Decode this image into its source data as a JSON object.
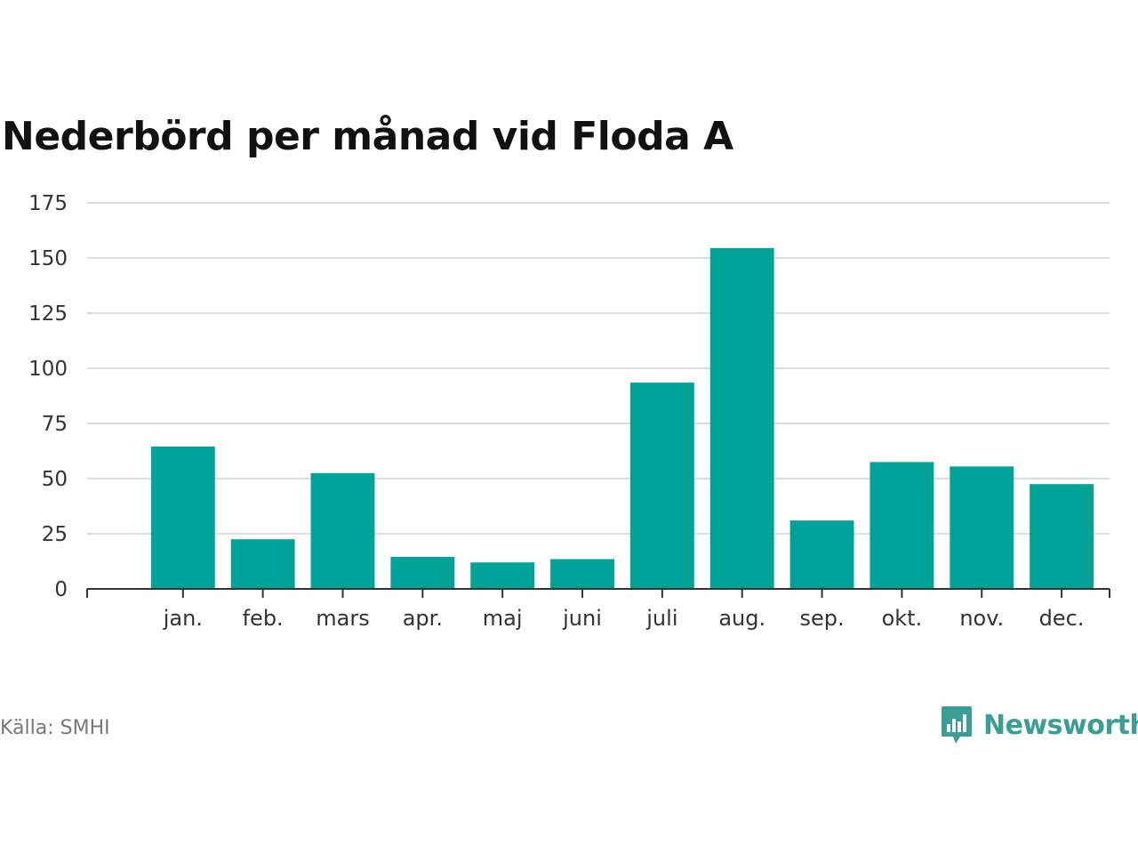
{
  "chart_data": {
    "type": "bar",
    "title": "Nederbörd per månad vid Floda A",
    "categories": [
      "jan.",
      "feb.",
      "mars",
      "apr.",
      "maj",
      "juni",
      "juli",
      "aug.",
      "sep.",
      "okt.",
      "nov.",
      "dec."
    ],
    "values": [
      64.5,
      22.5,
      52.5,
      14.5,
      12,
      13.5,
      93.5,
      154.5,
      31,
      57.5,
      55.5,
      47.5
    ],
    "ylim": [
      0,
      175
    ],
    "yticks": [
      0,
      25,
      50,
      75,
      100,
      125,
      150,
      175
    ],
    "xlabel": "",
    "ylabel": "",
    "grid": true,
    "bar_color": "#00a398"
  },
  "footer": {
    "source": "Källa: SMHI",
    "brand": "Newsworthy",
    "brand_icon": "bar-chart-speech-bubble-icon",
    "brand_color": "#3a9e95"
  }
}
